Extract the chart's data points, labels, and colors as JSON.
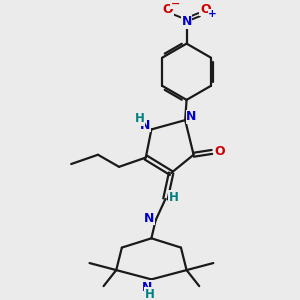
{
  "bg_color": "#ebebeb",
  "bond_color": "#1a1a1a",
  "N_color": "#0000cc",
  "O_color": "#cc0000",
  "H_color": "#008080",
  "figure_size": [
    3.0,
    3.0
  ],
  "dpi": 100,
  "xlim": [
    0,
    10
  ],
  "ylim": [
    0,
    10
  ]
}
